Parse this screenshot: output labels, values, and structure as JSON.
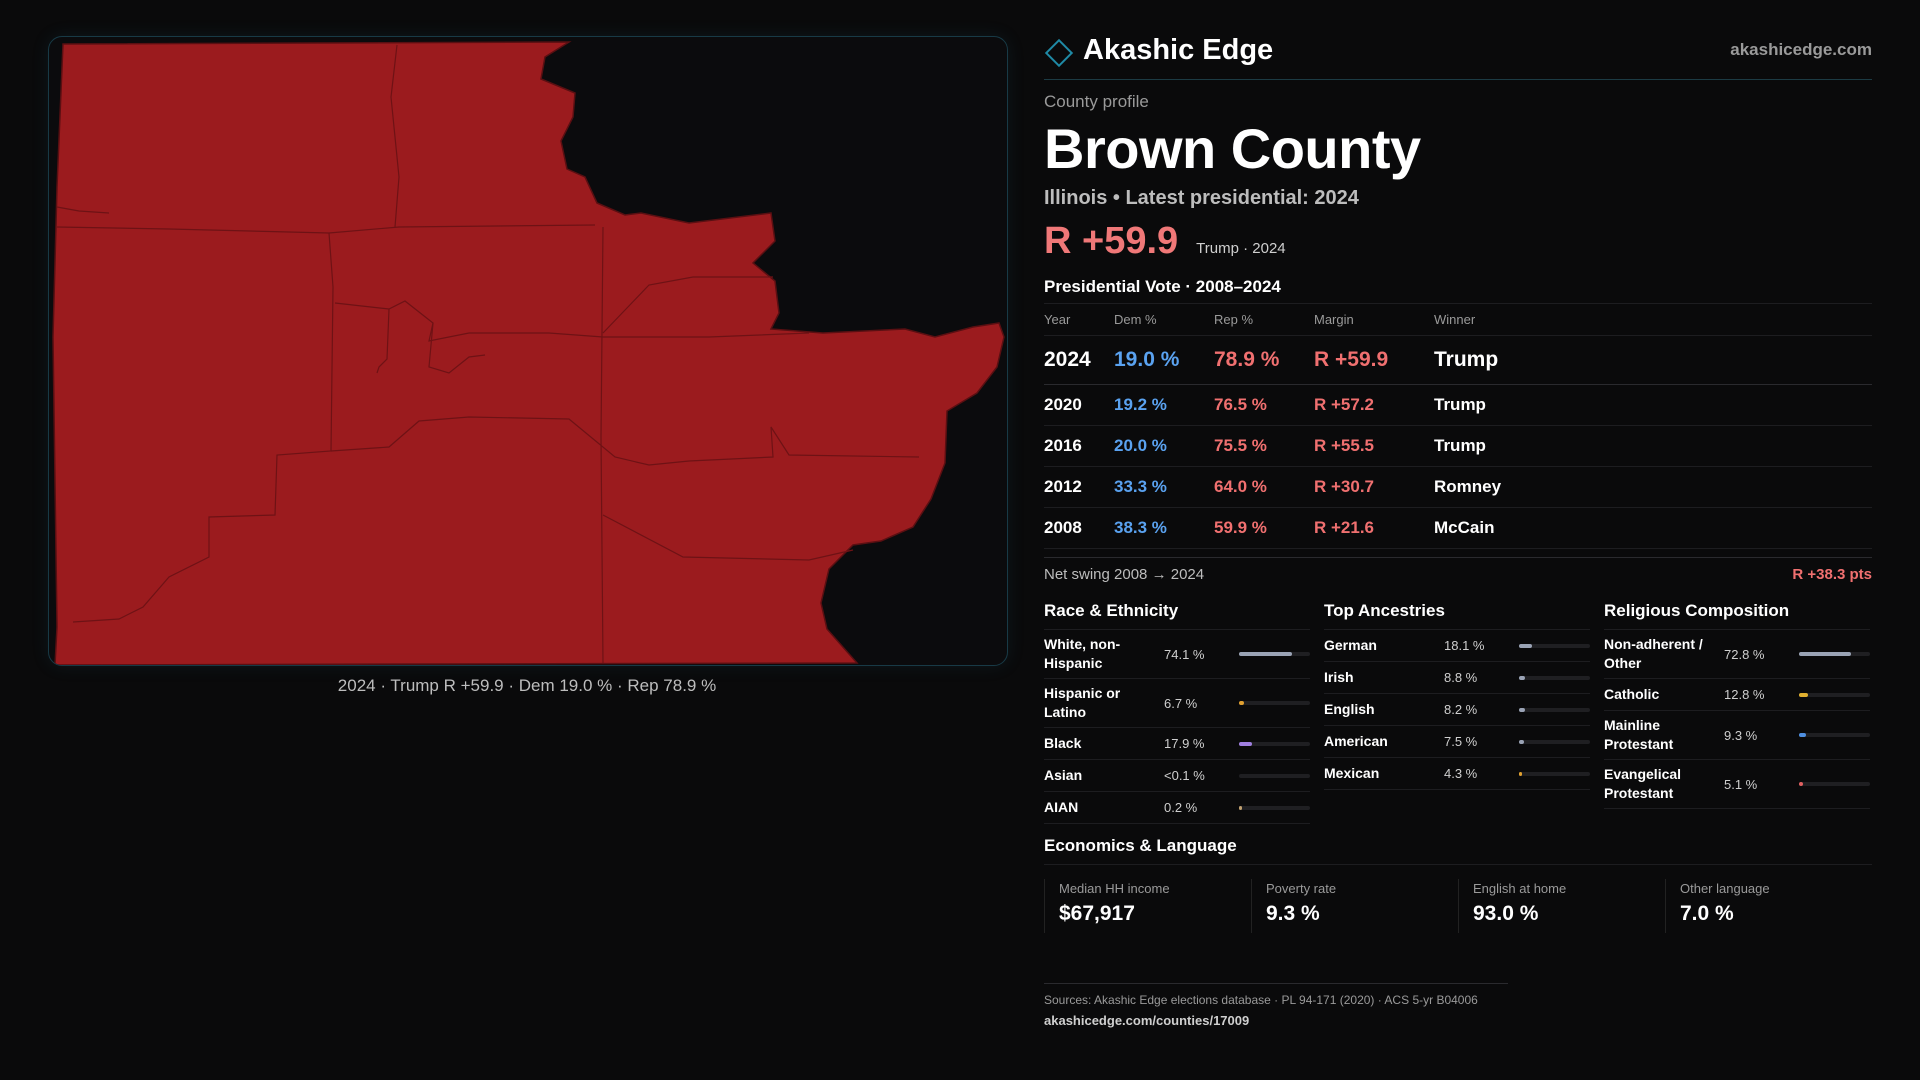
{
  "map": {
    "caption": "2024 · Trump R +59.9 · Dem 19.0 % · Rep 78.9 %",
    "fill_color": "#9b1b1e",
    "line_color": "#6e1215"
  },
  "brand": {
    "name": "Akashic Edge",
    "url": "akashicedge.com",
    "icon": "diamond-icon",
    "accent": "#1f8aa6"
  },
  "profile": {
    "eyebrow": "County profile",
    "title": "Brown County",
    "subtitle": "Illinois • Latest presidential: 2024",
    "headline_margin": "R +59.9",
    "headline_note": "Trump · 2024"
  },
  "votes": {
    "title": "Presidential Vote · 2008–2024",
    "headers": [
      "Year",
      "Dem %",
      "Rep %",
      "Margin",
      "Winner"
    ],
    "rows": [
      {
        "year": "2024",
        "dem": "19.0 %",
        "rep": "78.9 %",
        "margin": "R +59.9",
        "winner": "Trump"
      },
      {
        "year": "2020",
        "dem": "19.2 %",
        "rep": "76.5 %",
        "margin": "R +57.2",
        "winner": "Trump"
      },
      {
        "year": "2016",
        "dem": "20.0 %",
        "rep": "75.5 %",
        "margin": "R +55.5",
        "winner": "Trump"
      },
      {
        "year": "2012",
        "dem": "33.3 %",
        "rep": "64.0 %",
        "margin": "R +30.7",
        "winner": "Romney"
      },
      {
        "year": "2008",
        "dem": "38.3 %",
        "rep": "59.9 %",
        "margin": "R +21.6",
        "winner": "McCain"
      }
    ],
    "dem_color": "#5aa2f0",
    "rep_color": "#f07070"
  },
  "swing": {
    "label": "Net swing 2008 → 2024",
    "value": "R +38.3 pts"
  },
  "race": {
    "title": "Race & Ethnicity",
    "items": [
      {
        "name": "White, non-Hispanic",
        "value": "74.1 %",
        "fraction": 0.741,
        "color": "#9aa3b5"
      },
      {
        "name": "Hispanic or Latino",
        "value": "6.7 %",
        "fraction": 0.067,
        "color": "#e0a030"
      },
      {
        "name": "Black",
        "value": "17.9 %",
        "fraction": 0.179,
        "color": "#a07fe0"
      },
      {
        "name": "Asian",
        "value": "<0.1 %",
        "fraction": 0.0,
        "color": "#4fc0c0"
      },
      {
        "name": "AIAN",
        "value": "0.2 %",
        "fraction": 0.002,
        "color": "#c0a070"
      }
    ]
  },
  "ancestry": {
    "title": "Top Ancestries",
    "items": [
      {
        "name": "German",
        "value": "18.1 %",
        "fraction": 0.181,
        "color": "#9aa3b5"
      },
      {
        "name": "Irish",
        "value": "8.8 %",
        "fraction": 0.088,
        "color": "#9aa3b5"
      },
      {
        "name": "English",
        "value": "8.2 %",
        "fraction": 0.082,
        "color": "#9aa3b5"
      },
      {
        "name": "American",
        "value": "7.5 %",
        "fraction": 0.075,
        "color": "#9aa3b5"
      },
      {
        "name": "Mexican",
        "value": "4.3 %",
        "fraction": 0.043,
        "color": "#e0a030"
      }
    ]
  },
  "religion": {
    "title": "Religious Composition",
    "items": [
      {
        "name": "Non-adherent / Other",
        "value": "72.8 %",
        "fraction": 0.728,
        "color": "#9aa3b5"
      },
      {
        "name": "Catholic",
        "value": "12.8 %",
        "fraction": 0.128,
        "color": "#e0b030"
      },
      {
        "name": "Mainline Protestant",
        "value": "9.3 %",
        "fraction": 0.093,
        "color": "#4f8fe0"
      },
      {
        "name": "Evangelical Protestant",
        "value": "5.1 %",
        "fraction": 0.051,
        "color": "#e06060"
      }
    ]
  },
  "economics": {
    "title": "Economics & Language",
    "cells": [
      {
        "label": "Median HH income",
        "value": "$67,917"
      },
      {
        "label": "Poverty rate",
        "value": "9.3 %"
      },
      {
        "label": "English at home",
        "value": "93.0 %"
      },
      {
        "label": "Other language",
        "value": "7.0 %"
      }
    ]
  },
  "sources": {
    "text": "Sources: Akashic Edge elections database · PL 94-171 (2020) · ACS 5-yr B04006",
    "url": "akashicedge.com/counties/17009"
  }
}
